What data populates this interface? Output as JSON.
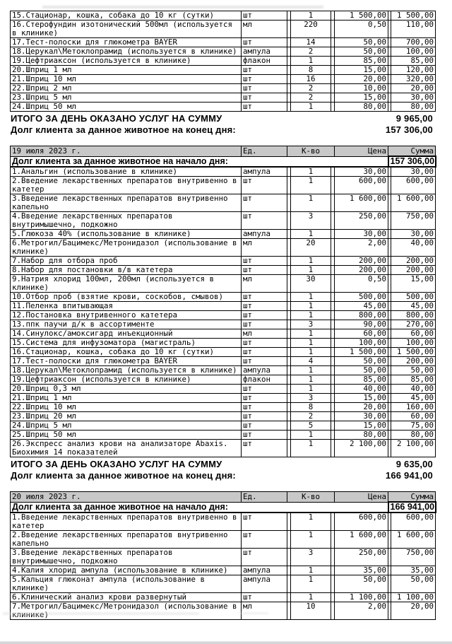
{
  "columns": {
    "unit": "Ед.",
    "qty": "К-во",
    "price": "Цена",
    "sum": "Сумма"
  },
  "labels": {
    "day_total": "ИТОГО ЗА ДЕНЬ ОКАЗАНО УСЛУГ НА СУММУ",
    "debt_start": "Долг клиента за данное животное на начало дня:",
    "debt_end": "Долг клиента за данное животное на конец дня:"
  },
  "colors": {
    "header_bg": "#c8c8c8",
    "border": "#000000",
    "page_bg": "#ffffff",
    "window_edge": "#d5d6d8"
  },
  "sections": [
    {
      "date": null,
      "debt_start": null,
      "items": [
        {
          "name": "15.Стационар, кошка, собака до 10 кг (сутки)",
          "unit": "шт",
          "qty": "1",
          "price": "1 500,00",
          "sum": "1 500,00"
        },
        {
          "name": "16.Стерофундин изотонический 500мл (используется в клинике)",
          "unit": "мл",
          "qty": "220",
          "price": "0,50",
          "sum": "110,00"
        },
        {
          "name": "17.Тест-полоски для глюкометра BAYER",
          "unit": "шт",
          "qty": "14",
          "price": "50,00",
          "sum": "700,00"
        },
        {
          "name": "18.Церукал\\Метоклопрамид (используется в клинике)",
          "unit": "ампула",
          "qty": "2",
          "price": "50,00",
          "sum": "100,00"
        },
        {
          "name": "19.Цефтриаксон (используется в клинике)",
          "unit": "флакон",
          "qty": "1",
          "price": "85,00",
          "sum": "85,00"
        },
        {
          "name": "20.Шприц 1 мл",
          "unit": "шт",
          "qty": "8",
          "price": "15,00",
          "sum": "120,00"
        },
        {
          "name": "21.Шприц 10 мл",
          "unit": "шт",
          "qty": "16",
          "price": "20,00",
          "sum": "320,00"
        },
        {
          "name": "22.Шприц 2 мл",
          "unit": "шт",
          "qty": "2",
          "price": "10,00",
          "sum": "20,00"
        },
        {
          "name": "23.Шприц 5 мл",
          "unit": "шт",
          "qty": "2",
          "price": "15,00",
          "sum": "30,00"
        },
        {
          "name": "24.Шприц 50 мл",
          "unit": "шт",
          "qty": "1",
          "price": "80,00",
          "sum": "80,00"
        }
      ],
      "day_total": "9 965,00",
      "debt_end": "157 306,00"
    },
    {
      "date": "19 июля 2023 г.",
      "debt_start": "157 306,00",
      "items": [
        {
          "name": "1.Анальгин (использование в клинике)",
          "unit": "ампула",
          "qty": "1",
          "price": "30,00",
          "sum": "30,00"
        },
        {
          "name": "2.Введение лекарственных препаратов внутривенно в катетер",
          "unit": "шт",
          "qty": "1",
          "price": "600,00",
          "sum": "600,00"
        },
        {
          "name": "3.Введение лекарственных препаратов внутривенно капельно",
          "unit": "шт",
          "qty": "1",
          "price": "1 600,00",
          "sum": "1 600,00"
        },
        {
          "name": "4.Введение лекарственных препаратов внутримышечно, подкожно",
          "unit": "шт",
          "qty": "3",
          "price": "250,00",
          "sum": "750,00"
        },
        {
          "name": "5.Глюкоза 40% (использование в клинике)",
          "unit": "ампула",
          "qty": "1",
          "price": "30,00",
          "sum": "30,00"
        },
        {
          "name": "6.Метрогил/Бацимекс/Метронидазол (использование в клинике)",
          "unit": "мл",
          "qty": "20",
          "price": "2,00",
          "sum": "40,00"
        },
        {
          "name": "7.Набор для отбора проб",
          "unit": "шт",
          "qty": "1",
          "price": "200,00",
          "sum": "200,00"
        },
        {
          "name": "8.Набор для постановки в/в катетера",
          "unit": "шт",
          "qty": "1",
          "price": "200,00",
          "sum": "200,00"
        },
        {
          "name": "9.Натрия хлорид 100мл, 200мл (используется в клинике)",
          "unit": "мл",
          "qty": "30",
          "price": "0,50",
          "sum": "15,00"
        },
        {
          "name": "10.Отбор проб (взятие крови, соскобов, смывов)",
          "unit": "шт",
          "qty": "1",
          "price": "500,00",
          "sum": "500,00"
        },
        {
          "name": "11.Пеленка впитывающая",
          "unit": "шт",
          "qty": "1",
          "price": "45,00",
          "sum": "45,00"
        },
        {
          "name": "12.Постановка внутривенного катетера",
          "unit": "шт",
          "qty": "1",
          "price": "800,00",
          "sum": "800,00"
        },
        {
          "name": "13.ппк паучи д/к в ассортименте",
          "unit": "шт",
          "qty": "3",
          "price": "90,00",
          "sum": "270,00"
        },
        {
          "name": "14.Синулокс/амоксигард инъекционный",
          "unit": "мл",
          "qty": "1",
          "price": "60,00",
          "sum": "60,00"
        },
        {
          "name": "15.Система для инфузоматора (магистраль)",
          "unit": "шт",
          "qty": "1",
          "price": "100,00",
          "sum": "100,00"
        },
        {
          "name": "16.Стационар, кошка, собака до 10 кг (сутки)",
          "unit": "шт",
          "qty": "1",
          "price": "1 500,00",
          "sum": "1 500,00"
        },
        {
          "name": "17.Тест-полоски для глюкометра BAYER",
          "unit": "шт",
          "qty": "4",
          "price": "50,00",
          "sum": "200,00"
        },
        {
          "name": "18.Церукал\\Метоклопрамид (используется в клинике)",
          "unit": "ампула",
          "qty": "1",
          "price": "50,00",
          "sum": "50,00"
        },
        {
          "name": "19.Цефтриаксон (используется в клинике)",
          "unit": "флакон",
          "qty": "1",
          "price": "85,00",
          "sum": "85,00"
        },
        {
          "name": "20.Шприц 0,3 мл",
          "unit": "шт",
          "qty": "1",
          "price": "40,00",
          "sum": "40,00"
        },
        {
          "name": "21.Шприц 1 мл",
          "unit": "шт",
          "qty": "3",
          "price": "15,00",
          "sum": "45,00"
        },
        {
          "name": "22.Шприц 10 мл",
          "unit": "шт",
          "qty": "8",
          "price": "20,00",
          "sum": "160,00"
        },
        {
          "name": "23.Шприц 20 мл",
          "unit": "шт",
          "qty": "2",
          "price": "30,00",
          "sum": "60,00"
        },
        {
          "name": "24.Шприц 5 мл",
          "unit": "шт",
          "qty": "5",
          "price": "15,00",
          "sum": "75,00"
        },
        {
          "name": "25.Шприц 50 мл",
          "unit": "шт",
          "qty": "1",
          "price": "80,00",
          "sum": "80,00"
        },
        {
          "name": "26.Экспресс анализ крови на анализаторе Abaxis. Биохимия 14 показателей",
          "unit": "шт",
          "qty": "1",
          "price": "2 100,00",
          "sum": "2 100,00"
        }
      ],
      "day_total": "9 635,00",
      "debt_end": "166 941,00"
    },
    {
      "date": "20 июля 2023 г.",
      "debt_start": "166 941,00",
      "items": [
        {
          "name": "1.Введение лекарственных препаратов внутривенно в катетер",
          "unit": "шт",
          "qty": "1",
          "price": "600,00",
          "sum": "600,00"
        },
        {
          "name": "2.Введение лекарственных препаратов внутривенно капельно",
          "unit": "шт",
          "qty": "1",
          "price": "1 600,00",
          "sum": "1 600,00"
        },
        {
          "name": "3.Введение лекарственных препаратов внутримышечно, подкожно",
          "unit": "шт",
          "qty": "3",
          "price": "250,00",
          "sum": "750,00"
        },
        {
          "name": "4.Калия хлорид ампула (использование в клинике)",
          "unit": "ампула",
          "qty": "1",
          "price": "35,00",
          "sum": "35,00"
        },
        {
          "name": "5.Кальция глюконат ампула (использование в клинике)",
          "unit": "ампула",
          "qty": "1",
          "price": "50,00",
          "sum": "50,00"
        },
        {
          "name": "6.Клинический анализ крови развернутый",
          "unit": "шт",
          "qty": "1",
          "price": "1 100,00",
          "sum": "1 100,00"
        },
        {
          "name": "7.Метрогил/Бацимекс/Метронидазол (использование в клинике)",
          "unit": "мл",
          "qty": "10",
          "price": "2,00",
          "sum": "20,00"
        }
      ],
      "day_total": null,
      "debt_end": null
    }
  ]
}
